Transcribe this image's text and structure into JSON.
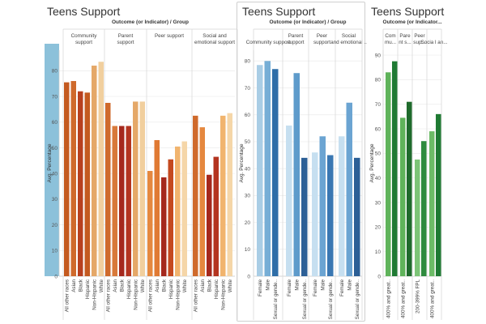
{
  "panels": [
    {
      "title": "Teens Support",
      "header": "Outcome (or Indicator) / Group",
      "ylabel": "Avg. Percentage",
      "ylim": [
        0,
        88
      ],
      "ticks": [
        0,
        10,
        20,
        30,
        40,
        50,
        60,
        70,
        80
      ]
    },
    {
      "title": "Teens Support",
      "header": "Outcome (or Indicator) / Group",
      "ylabel": "Avg. Percentage",
      "ylim": [
        0,
        84
      ],
      "ticks": [
        0,
        10,
        20,
        30,
        40,
        50,
        60,
        70,
        80
      ]
    },
    {
      "title": "Teens Support",
      "header": "Outcome (or Indicator...",
      "ylabel": "Avg. Percentage",
      "ylim": [
        0,
        92
      ],
      "ticks": [
        0,
        10,
        20,
        30,
        40,
        50,
        60,
        70,
        80,
        90
      ]
    }
  ],
  "chart_data": [
    {
      "type": "bar",
      "title": "Teens Support",
      "xlabel": "Outcome (or Indicator) / Group",
      "ylabel": "Avg. Percentage",
      "ylim": [
        0,
        88
      ],
      "groups": [
        {
          "name": "Community support",
          "categories": [
            "All other races",
            "Asian",
            "Black",
            "Hispanic",
            "Non-Hispanic",
            "White"
          ],
          "values": [
            75.5,
            76,
            72,
            71.5,
            82,
            83.5
          ],
          "colors": [
            "#c45a20",
            "#cf6a2c",
            "#b8401f",
            "#c45a20",
            "#e5a868",
            "#f1cf9e"
          ]
        },
        {
          "name": "Parent support",
          "categories": [
            "All other races",
            "Asian",
            "Black",
            "Hispanic",
            "Non-Hispanic",
            "White"
          ],
          "values": [
            67.5,
            58.5,
            58.5,
            58.5,
            68,
            68
          ],
          "colors": [
            "#cf6a2c",
            "#d8793a",
            "#a5281d",
            "#b43420",
            "#e5a868",
            "#f1cf9e"
          ]
        },
        {
          "name": "Peer support",
          "categories": [
            "All other races",
            "Asian",
            "Black",
            "Hispanic",
            "Non-Hispanic",
            "White"
          ],
          "values": [
            41,
            53,
            38.5,
            45.5,
            50.5,
            52.5
          ],
          "colors": [
            "#e5883f",
            "#e07a34",
            "#a5281d",
            "#c4491f",
            "#f1b46e",
            "#f5d6a8"
          ]
        },
        {
          "name": "Social and emotional support",
          "categories": [
            "All other races",
            "Asian",
            "Black",
            "Hispanic",
            "Non-Hispanic",
            "White"
          ],
          "values": [
            62.5,
            58,
            39.5,
            46.5,
            62.5,
            63.5
          ],
          "colors": [
            "#cf6a2c",
            "#e5883f",
            "#a5281d",
            "#b43420",
            "#f1b46e",
            "#f5d6a8"
          ]
        }
      ]
    },
    {
      "type": "bar",
      "title": "Teens Support",
      "xlabel": "Outcome (or Indicator) / Group",
      "ylabel": "Avg. Percentage",
      "ylim": [
        0,
        84
      ],
      "groups": [
        {
          "name": "Community support",
          "categories": [
            "Female",
            "Male",
            "Sexual or gende.."
          ],
          "values": [
            78.5,
            80,
            77
          ],
          "colors": [
            "#a9cde5",
            "#76aed6",
            "#2f6ea8"
          ]
        },
        {
          "name": "Parent support",
          "categories": [
            "Female",
            "Male",
            "Sexual or gende.."
          ],
          "values": [
            56,
            75.5,
            44
          ],
          "colors": [
            "#c6dff0",
            "#5e9bcb",
            "#2c5f96"
          ]
        },
        {
          "name": "Peer support",
          "categories": [
            "Female",
            "Male",
            "Sexual or gende.."
          ],
          "values": [
            46,
            52,
            45
          ],
          "colors": [
            "#c6dff0",
            "#6ba4d2",
            "#3a77b2"
          ]
        },
        {
          "name": "Social and emotional ..",
          "categories": [
            "Female",
            "Male",
            "Sexual or gende.."
          ],
          "values": [
            52,
            64.5,
            44
          ],
          "colors": [
            "#c6dff0",
            "#6ba4d2",
            "#2c5f96"
          ]
        }
      ]
    },
    {
      "type": "bar",
      "title": "Teens Support",
      "xlabel": "Outcome (or Indicator...",
      "ylabel": "Avg. Percentage",
      "ylim": [
        0,
        92
      ],
      "groups": [
        {
          "name": "Com mu...",
          "categories": [
            "400% and great..",
            ""
          ],
          "values": [
            83,
            87.5
          ],
          "colors": [
            "#5fb35a",
            "#1f7a33"
          ]
        },
        {
          "name": "Pare nt s...",
          "categories": [
            "400% and great..",
            ""
          ],
          "values": [
            64.5,
            71
          ],
          "colors": [
            "#5fb35a",
            "#1f6b2c"
          ]
        },
        {
          "name": "Peer sup...",
          "categories": [
            "200-399% FPL",
            ""
          ],
          "values": [
            47.5,
            55
          ],
          "colors": [
            "#7cc477",
            "#2e8b3e"
          ]
        },
        {
          "name": "Socia l an...",
          "categories": [
            "400% and great..",
            ""
          ],
          "values": [
            59,
            66
          ],
          "colors": [
            "#6cbb66",
            "#1f7a33"
          ]
        }
      ]
    }
  ]
}
